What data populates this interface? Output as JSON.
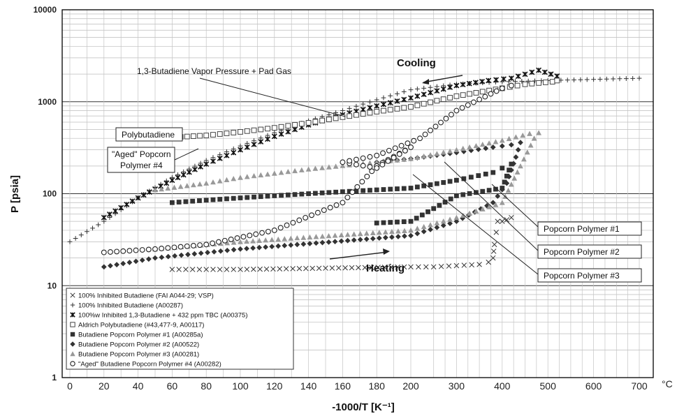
{
  "chart_data": {
    "type": "scatter",
    "ylabel": "P [psia]",
    "xlabel": "-1000/T [K⁻¹]",
    "x_unit": "°C",
    "y_scale": "log",
    "ylim": [
      1,
      10000
    ],
    "xlim": [
      -5,
      720
    ],
    "grid": true,
    "y_ticks": [
      "1",
      "10",
      "100",
      "1000",
      "10000"
    ],
    "x_ticks": [
      "0",
      "20",
      "40",
      "60",
      "80",
      "100",
      "120",
      "140",
      "160",
      "180",
      "200",
      "300",
      "400",
      "500",
      "600",
      "700"
    ],
    "legend_position": "bottom-left",
    "annotations": {
      "cooling": "Cooling",
      "heating": "Heating",
      "vapor": "1,3-Butadiene Vapor Pressure + Pad Gas",
      "polybutadiene": "Polybutadiene",
      "aged_line1": "\"Aged\" Popcorn",
      "aged_line2": "Polymer #4",
      "pp1": "Popcorn Polymer #1",
      "pp2": "Popcorn Polymer #2",
      "pp3": "Popcorn Polymer #3"
    },
    "series": [
      {
        "name": "100% Inhibited Butadiene (FAI A044-29; VSP)",
        "marker": "x",
        "color": "#333333",
        "x": [
          60,
          100,
          150,
          200,
          250,
          300,
          350,
          370,
          380,
          383,
          387,
          390,
          400,
          410,
          420
        ],
        "y": [
          15,
          15,
          15.5,
          16,
          16,
          16.5,
          17,
          18,
          20,
          28,
          38,
          50,
          50,
          52,
          55
        ]
      },
      {
        "name": "100% Inhibited Butadiene (A00287)",
        "marker": "+",
        "color": "#333333",
        "x": [
          0,
          20,
          40,
          60,
          80,
          100,
          120,
          140,
          160,
          180,
          200,
          300,
          400,
          500,
          600,
          700
        ],
        "y": [
          30,
          50,
          90,
          150,
          230,
          330,
          460,
          620,
          800,
          1050,
          1350,
          1550,
          1650,
          1700,
          1750,
          1800
        ]
      },
      {
        "name": "100%w Inhibited 1,3-Butadiene + 432 ppm TBC (A00375)",
        "marker": "x-bold",
        "color": "#111111",
        "x": [
          20,
          40,
          60,
          80,
          100,
          120,
          140,
          160,
          180,
          200,
          300,
          370,
          420,
          480,
          520
        ],
        "y": [
          55,
          90,
          140,
          210,
          300,
          420,
          560,
          720,
          900,
          1100,
          1500,
          1700,
          1800,
          2200,
          1900
        ]
      },
      {
        "name": "Aldrich Polybutadiene (#43,477-9, A00117)",
        "marker": "square-open",
        "color": "#444444",
        "x": [
          50,
          80,
          100,
          120,
          140,
          160,
          180,
          200,
          300,
          400,
          450,
          480,
          510,
          520
        ],
        "y": [
          400,
          430,
          470,
          520,
          590,
          680,
          780,
          880,
          1150,
          1400,
          1550,
          1600,
          1650,
          1700
        ]
      },
      {
        "name": "Butadiene Popcorn Polymer #1 (A00285a)",
        "marker": "square",
        "color": "#333333",
        "x": [
          60,
          80,
          100,
          120,
          140,
          160,
          180,
          200,
          300,
          380,
          400,
          420,
          400,
          300,
          200,
          180
        ],
        "y": [
          80,
          85,
          90,
          95,
          100,
          105,
          110,
          115,
          140,
          170,
          190,
          210,
          115,
          95,
          50,
          48
        ]
      },
      {
        "name": "Butadiene Popcorn Polymer #2 (A00522)",
        "marker": "diamond",
        "color": "#333333",
        "x": [
          180,
          200,
          300,
          380,
          420,
          440,
          430,
          410,
          380,
          300,
          200,
          100,
          50,
          20
        ],
        "y": [
          220,
          240,
          280,
          320,
          340,
          360,
          250,
          130,
          80,
          50,
          35,
          25,
          20,
          16
        ]
      },
      {
        "name": "Butadiene Popcorn Polymer #3 (A00281)",
        "marker": "triangle",
        "color": "#999999",
        "x": [
          50,
          80,
          100,
          140,
          180,
          200,
          300,
          400,
          460,
          480,
          470,
          440,
          400,
          300,
          200,
          100,
          50
        ],
        "y": [
          110,
          130,
          150,
          185,
          220,
          240,
          300,
          380,
          450,
          460,
          400,
          200,
          80,
          55,
          40,
          30,
          25
        ]
      },
      {
        "name": "\"Aged\" Butadiene Popcorn Polymer #4 (A00282)",
        "marker": "circle-open",
        "color": "#222222",
        "x": [
          20,
          50,
          80,
          120,
          160,
          180,
          200,
          180,
          160,
          180,
          220,
          300,
          400,
          420
        ],
        "y": [
          23,
          25,
          28,
          40,
          80,
          200,
          320,
          190,
          220,
          260,
          400,
          800,
          1400,
          1500
        ]
      }
    ]
  }
}
